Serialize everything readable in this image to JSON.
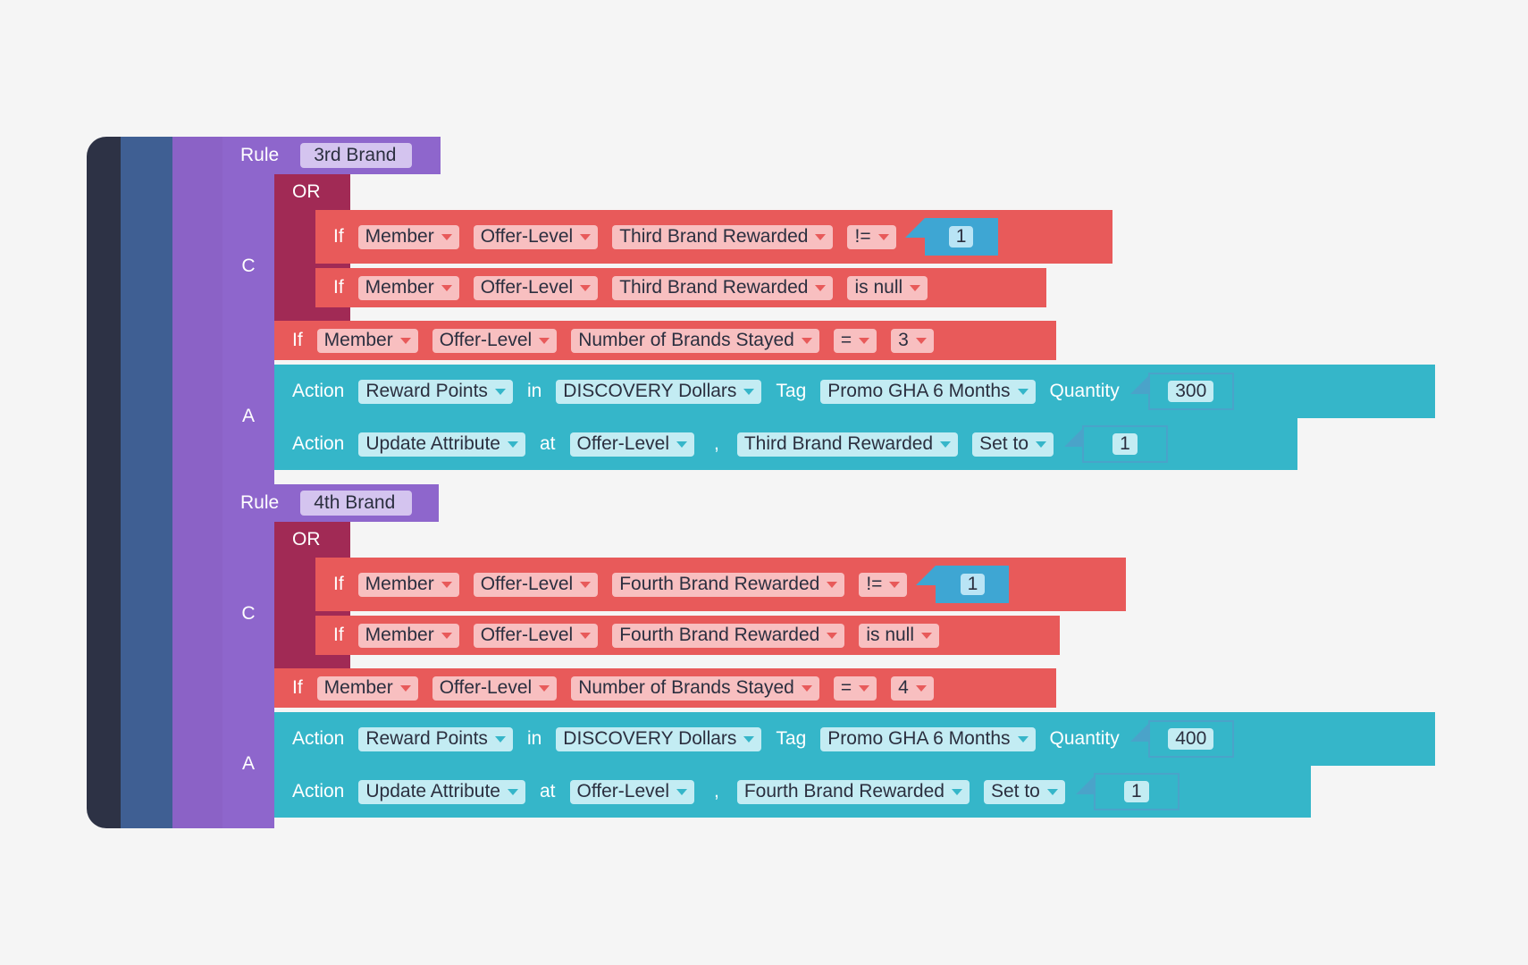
{
  "rules": [
    {
      "keyword": "Rule",
      "name": "3rd Brand",
      "conditions_label": "C",
      "actions_label": "A",
      "or_group": {
        "label": "OR",
        "conditions": [
          {
            "keyword": "If",
            "entity": "Member",
            "scope": "Offer-Level",
            "attribute": "Third Brand Rewarded",
            "operator": "!=",
            "value": "1"
          },
          {
            "keyword": "If",
            "entity": "Member",
            "scope": "Offer-Level",
            "attribute": "Third Brand Rewarded",
            "operator": "is null"
          }
        ]
      },
      "condition": {
        "keyword": "If",
        "entity": "Member",
        "scope": "Offer-Level",
        "attribute": "Number of Brands Stayed",
        "operator": "=",
        "value_select": "3"
      },
      "actions": [
        {
          "keyword": "Action",
          "type": "Reward Points",
          "connector": "in",
          "currency": "DISCOVERY Dollars",
          "tag_label": "Tag",
          "tag": "Promo GHA 6 Months",
          "quantity_label": "Quantity",
          "quantity": "300"
        },
        {
          "keyword": "Action",
          "type": "Update Attribute",
          "connector": "at",
          "scope": "Offer-Level",
          "separator": ",",
          "attribute": "Third Brand Rewarded",
          "set_label": "Set to",
          "value": "1"
        }
      ]
    },
    {
      "keyword": "Rule",
      "name": "4th Brand",
      "conditions_label": "C",
      "actions_label": "A",
      "or_group": {
        "label": "OR",
        "conditions": [
          {
            "keyword": "If",
            "entity": "Member",
            "scope": "Offer-Level",
            "attribute": "Fourth Brand Rewarded",
            "operator": "!=",
            "value": "1"
          },
          {
            "keyword": "If",
            "entity": "Member",
            "scope": "Offer-Level",
            "attribute": "Fourth Brand Rewarded",
            "operator": "is null"
          }
        ]
      },
      "condition": {
        "keyword": "If",
        "entity": "Member",
        "scope": "Offer-Level",
        "attribute": "Number of Brands Stayed",
        "operator": "=",
        "value_select": "4"
      },
      "actions": [
        {
          "keyword": "Action",
          "type": "Reward Points",
          "connector": "in",
          "currency": "DISCOVERY Dollars",
          "tag_label": "Tag",
          "tag": "Promo GHA 6 Months",
          "quantity_label": "Quantity",
          "quantity": "400"
        },
        {
          "keyword": "Action",
          "type": "Update Attribute",
          "connector": "at",
          "scope": "Offer-Level",
          "separator": ",",
          "attribute": "Fourth Brand Rewarded",
          "set_label": "Set to",
          "value": "1"
        }
      ]
    }
  ],
  "colors": {
    "stack_dark": "#2d3245",
    "stack_blue": "#3f5f93",
    "stack_purple": "#8b62c6",
    "rule_block": "#8e66cc",
    "or_block": "#a12a55",
    "condition_block": "#e85a5a",
    "action_block": "#35b6c9",
    "value_block": "#3ea6d3"
  }
}
